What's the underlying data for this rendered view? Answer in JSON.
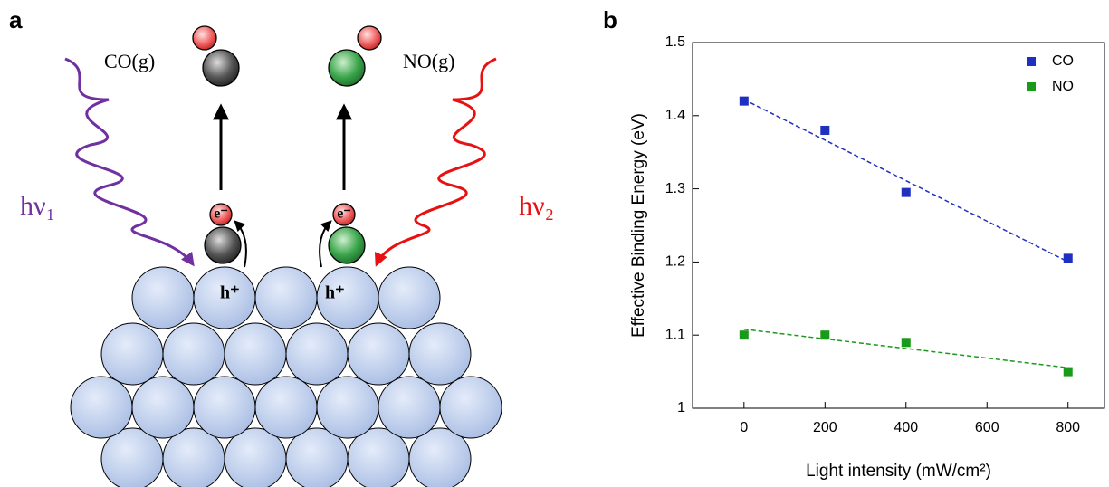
{
  "panel_a": {
    "label": "a",
    "gas_1": "CO(g)",
    "gas_2": "NO(g)",
    "photon_1": "hν₁",
    "photon_2": "hν₂",
    "electron_1": "e⁻",
    "electron_2": "e⁻",
    "hole_1": "h⁺",
    "hole_2": "h⁺"
  },
  "chart_data": {
    "type": "scatter",
    "label": "b",
    "x_label": "Light intensity (mW/cm²)",
    "y_label": "Effective Binding Energy (eV)",
    "x": [
      0,
      200,
      400,
      800
    ],
    "series": [
      {
        "name": "CO",
        "color": "#1f2fbf",
        "values": [
          1.42,
          1.38,
          1.295,
          1.205
        ]
      },
      {
        "name": "NO",
        "color": "#1a9a1a",
        "values": [
          1.1,
          1.1,
          1.09,
          1.05
        ]
      }
    ],
    "xlim": [
      -127,
      890
    ],
    "ylim": [
      1,
      1.5
    ],
    "xticks": [
      0,
      200,
      400,
      600,
      800
    ],
    "yticks": [
      1,
      1.1,
      1.2,
      1.3,
      1.4,
      1.5
    ],
    "trend_lines": true,
    "legend": "top-right"
  }
}
